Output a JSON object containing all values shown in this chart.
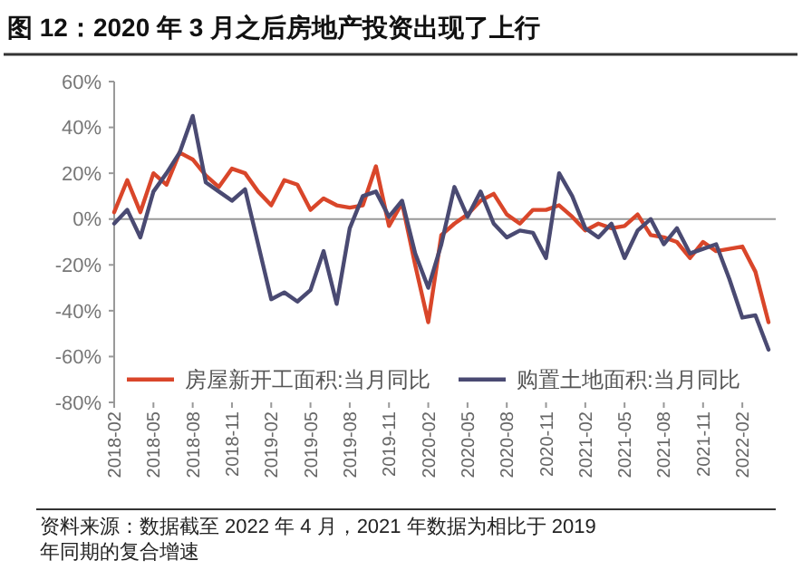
{
  "chart_data": {
    "type": "line",
    "title": "图 12：2020 年 3 月之后房地产投资出现了上行",
    "categories": [
      "2018-02",
      null,
      null,
      "2018-05",
      null,
      null,
      "2018-08",
      null,
      null,
      "2018-11",
      null,
      null,
      "2019-02",
      null,
      null,
      "2019-05",
      null,
      null,
      "2019-08",
      null,
      null,
      "2019-11",
      null,
      null,
      "2020-02",
      null,
      null,
      "2020-05",
      null,
      null,
      "2020-08",
      null,
      null,
      "2020-11",
      null,
      null,
      "2021-02",
      null,
      null,
      "2021-05",
      null,
      null,
      "2021-08",
      null,
      null,
      "2021-11",
      null,
      null,
      "2022-02",
      null,
      null
    ],
    "series": [
      {
        "name": "房屋新开工面积:当月同比",
        "color": "#d9462a",
        "values": [
          3,
          17,
          3,
          20,
          15,
          29,
          26,
          19,
          14,
          22,
          20,
          12,
          6,
          17,
          15,
          4,
          9,
          6,
          5,
          6,
          23,
          -3,
          7,
          -20,
          -45,
          -7,
          -2,
          2,
          8,
          11,
          2,
          -2,
          4,
          4,
          6,
          1,
          -5,
          -2,
          -4,
          -3,
          2,
          -7,
          -8,
          -10,
          -17,
          -10,
          -14,
          -13,
          -12,
          -23,
          -45
        ]
      },
      {
        "name": "购置土地面积:当月同比",
        "color": "#4a4a72",
        "values": [
          -2,
          4,
          -8,
          12,
          20,
          29,
          45,
          16,
          12,
          8,
          13,
          -11,
          -35,
          -32,
          -36,
          -31,
          -14,
          -37,
          -4,
          10,
          12,
          1,
          8,
          -15,
          -30,
          -11,
          14,
          1,
          12,
          -2,
          -8,
          -5,
          -6,
          -17,
          20,
          10,
          -4,
          -8,
          -2,
          -17,
          -5,
          0,
          -11,
          -4,
          -15,
          -13,
          -11,
          -26,
          -43,
          -42,
          -57
        ]
      }
    ],
    "ylim": [
      -80,
      60
    ],
    "yticks": [
      {
        "value": -80,
        "label": "-80%"
      },
      {
        "value": -60,
        "label": "-60%"
      },
      {
        "value": -40,
        "label": "-40%"
      },
      {
        "value": -20,
        "label": "-20%"
      },
      {
        "value": 0,
        "label": "0%"
      },
      {
        "value": 20,
        "label": "20%"
      },
      {
        "value": 40,
        "label": "40%"
      },
      {
        "value": 60,
        "label": "60%"
      }
    ],
    "ref_lines": [
      {
        "axis": "y",
        "value": 0,
        "color": "#999999"
      }
    ],
    "grid": false,
    "legend": "bottom",
    "marker": "none",
    "line_style": "solid",
    "annotations": [
      "资料来源：数据截至 2022 年 4 月，2021 年数据为相比于 2019 年同期的复合增速"
    ]
  }
}
